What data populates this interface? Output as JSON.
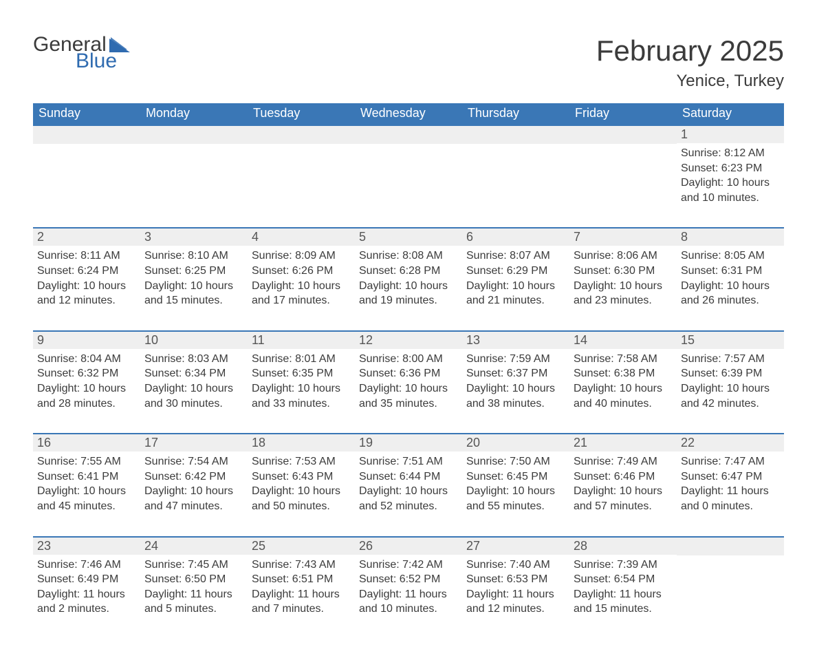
{
  "brand": {
    "word1": "General",
    "word2": "Blue",
    "flag_color": "#2f6bb0"
  },
  "title": "February 2025",
  "location": "Yenice, Turkey",
  "header_bg": "#3a77b6",
  "header_text": "#ffffff",
  "daynum_bg": "#efefef",
  "week_border": "#3a77b6",
  "text_color": "#3b3b3b",
  "weekdays": [
    "Sunday",
    "Monday",
    "Tuesday",
    "Wednesday",
    "Thursday",
    "Friday",
    "Saturday"
  ],
  "weeks": [
    [
      null,
      null,
      null,
      null,
      null,
      null,
      {
        "n": "1",
        "sunrise": "Sunrise: 8:12 AM",
        "sunset": "Sunset: 6:23 PM",
        "d1": "Daylight: 10 hours",
        "d2": "and 10 minutes."
      }
    ],
    [
      {
        "n": "2",
        "sunrise": "Sunrise: 8:11 AM",
        "sunset": "Sunset: 6:24 PM",
        "d1": "Daylight: 10 hours",
        "d2": "and 12 minutes."
      },
      {
        "n": "3",
        "sunrise": "Sunrise: 8:10 AM",
        "sunset": "Sunset: 6:25 PM",
        "d1": "Daylight: 10 hours",
        "d2": "and 15 minutes."
      },
      {
        "n": "4",
        "sunrise": "Sunrise: 8:09 AM",
        "sunset": "Sunset: 6:26 PM",
        "d1": "Daylight: 10 hours",
        "d2": "and 17 minutes."
      },
      {
        "n": "5",
        "sunrise": "Sunrise: 8:08 AM",
        "sunset": "Sunset: 6:28 PM",
        "d1": "Daylight: 10 hours",
        "d2": "and 19 minutes."
      },
      {
        "n": "6",
        "sunrise": "Sunrise: 8:07 AM",
        "sunset": "Sunset: 6:29 PM",
        "d1": "Daylight: 10 hours",
        "d2": "and 21 minutes."
      },
      {
        "n": "7",
        "sunrise": "Sunrise: 8:06 AM",
        "sunset": "Sunset: 6:30 PM",
        "d1": "Daylight: 10 hours",
        "d2": "and 23 minutes."
      },
      {
        "n": "8",
        "sunrise": "Sunrise: 8:05 AM",
        "sunset": "Sunset: 6:31 PM",
        "d1": "Daylight: 10 hours",
        "d2": "and 26 minutes."
      }
    ],
    [
      {
        "n": "9",
        "sunrise": "Sunrise: 8:04 AM",
        "sunset": "Sunset: 6:32 PM",
        "d1": "Daylight: 10 hours",
        "d2": "and 28 minutes."
      },
      {
        "n": "10",
        "sunrise": "Sunrise: 8:03 AM",
        "sunset": "Sunset: 6:34 PM",
        "d1": "Daylight: 10 hours",
        "d2": "and 30 minutes."
      },
      {
        "n": "11",
        "sunrise": "Sunrise: 8:01 AM",
        "sunset": "Sunset: 6:35 PM",
        "d1": "Daylight: 10 hours",
        "d2": "and 33 minutes."
      },
      {
        "n": "12",
        "sunrise": "Sunrise: 8:00 AM",
        "sunset": "Sunset: 6:36 PM",
        "d1": "Daylight: 10 hours",
        "d2": "and 35 minutes."
      },
      {
        "n": "13",
        "sunrise": "Sunrise: 7:59 AM",
        "sunset": "Sunset: 6:37 PM",
        "d1": "Daylight: 10 hours",
        "d2": "and 38 minutes."
      },
      {
        "n": "14",
        "sunrise": "Sunrise: 7:58 AM",
        "sunset": "Sunset: 6:38 PM",
        "d1": "Daylight: 10 hours",
        "d2": "and 40 minutes."
      },
      {
        "n": "15",
        "sunrise": "Sunrise: 7:57 AM",
        "sunset": "Sunset: 6:39 PM",
        "d1": "Daylight: 10 hours",
        "d2": "and 42 minutes."
      }
    ],
    [
      {
        "n": "16",
        "sunrise": "Sunrise: 7:55 AM",
        "sunset": "Sunset: 6:41 PM",
        "d1": "Daylight: 10 hours",
        "d2": "and 45 minutes."
      },
      {
        "n": "17",
        "sunrise": "Sunrise: 7:54 AM",
        "sunset": "Sunset: 6:42 PM",
        "d1": "Daylight: 10 hours",
        "d2": "and 47 minutes."
      },
      {
        "n": "18",
        "sunrise": "Sunrise: 7:53 AM",
        "sunset": "Sunset: 6:43 PM",
        "d1": "Daylight: 10 hours",
        "d2": "and 50 minutes."
      },
      {
        "n": "19",
        "sunrise": "Sunrise: 7:51 AM",
        "sunset": "Sunset: 6:44 PM",
        "d1": "Daylight: 10 hours",
        "d2": "and 52 minutes."
      },
      {
        "n": "20",
        "sunrise": "Sunrise: 7:50 AM",
        "sunset": "Sunset: 6:45 PM",
        "d1": "Daylight: 10 hours",
        "d2": "and 55 minutes."
      },
      {
        "n": "21",
        "sunrise": "Sunrise: 7:49 AM",
        "sunset": "Sunset: 6:46 PM",
        "d1": "Daylight: 10 hours",
        "d2": "and 57 minutes."
      },
      {
        "n": "22",
        "sunrise": "Sunrise: 7:47 AM",
        "sunset": "Sunset: 6:47 PM",
        "d1": "Daylight: 11 hours",
        "d2": "and 0 minutes."
      }
    ],
    [
      {
        "n": "23",
        "sunrise": "Sunrise: 7:46 AM",
        "sunset": "Sunset: 6:49 PM",
        "d1": "Daylight: 11 hours",
        "d2": "and 2 minutes."
      },
      {
        "n": "24",
        "sunrise": "Sunrise: 7:45 AM",
        "sunset": "Sunset: 6:50 PM",
        "d1": "Daylight: 11 hours",
        "d2": "and 5 minutes."
      },
      {
        "n": "25",
        "sunrise": "Sunrise: 7:43 AM",
        "sunset": "Sunset: 6:51 PM",
        "d1": "Daylight: 11 hours",
        "d2": "and 7 minutes."
      },
      {
        "n": "26",
        "sunrise": "Sunrise: 7:42 AM",
        "sunset": "Sunset: 6:52 PM",
        "d1": "Daylight: 11 hours",
        "d2": "and 10 minutes."
      },
      {
        "n": "27",
        "sunrise": "Sunrise: 7:40 AM",
        "sunset": "Sunset: 6:53 PM",
        "d1": "Daylight: 11 hours",
        "d2": "and 12 minutes."
      },
      {
        "n": "28",
        "sunrise": "Sunrise: 7:39 AM",
        "sunset": "Sunset: 6:54 PM",
        "d1": "Daylight: 11 hours",
        "d2": "and 15 minutes."
      },
      null
    ]
  ]
}
